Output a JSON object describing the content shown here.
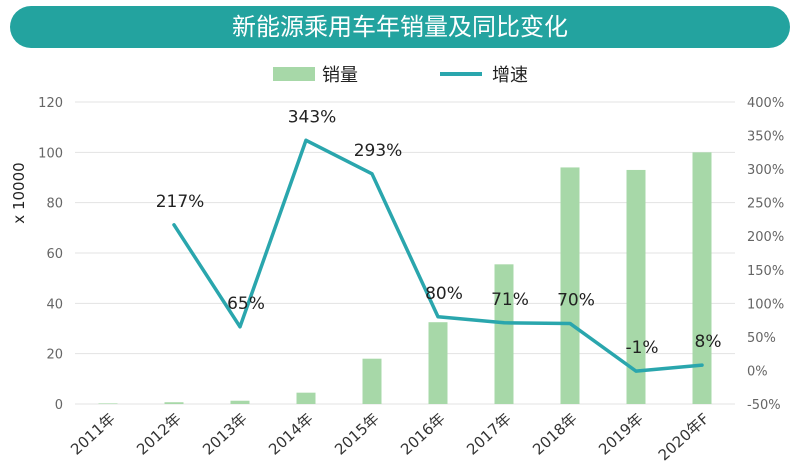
{
  "title": "新能源乘用车年销量及同比变化",
  "chart_data": {
    "type": "bar+line",
    "title": "新能源乘用车年销量及同比变化",
    "ylabel": "x 10000",
    "categories": [
      "2011年",
      "2012年",
      "2013年",
      "2014年",
      "2015年",
      "2016年",
      "2017年",
      "2018年",
      "2019年",
      "2020年F"
    ],
    "series": [
      {
        "name": "销量",
        "type": "bar",
        "axis": "left",
        "color": "#a7d8a8",
        "values": [
          0.05,
          0.7,
          1.3,
          4.5,
          18,
          32.5,
          55.5,
          94,
          93,
          100
        ]
      },
      {
        "name": "增速",
        "type": "line",
        "axis": "right",
        "color": "#2aa6ad",
        "values": [
          null,
          217,
          65,
          343,
          293,
          80,
          71,
          70,
          -1,
          8
        ],
        "labels": [
          "",
          "217%",
          "65%",
          "343%",
          "293%",
          "80%",
          "71%",
          "70%",
          "-1%",
          "8%"
        ]
      }
    ],
    "ylim_left": [
      0,
      120
    ],
    "yticks_left": [
      "0",
      "20",
      "40",
      "60",
      "80",
      "100",
      "120"
    ],
    "ylim_right": [
      -50,
      400
    ],
    "yticks_right": [
      "-50%",
      "0%",
      "50%",
      "100%",
      "150%",
      "200%",
      "250%",
      "300%",
      "350%",
      "400%"
    ],
    "grid": true,
    "legend_position": "top-center"
  }
}
